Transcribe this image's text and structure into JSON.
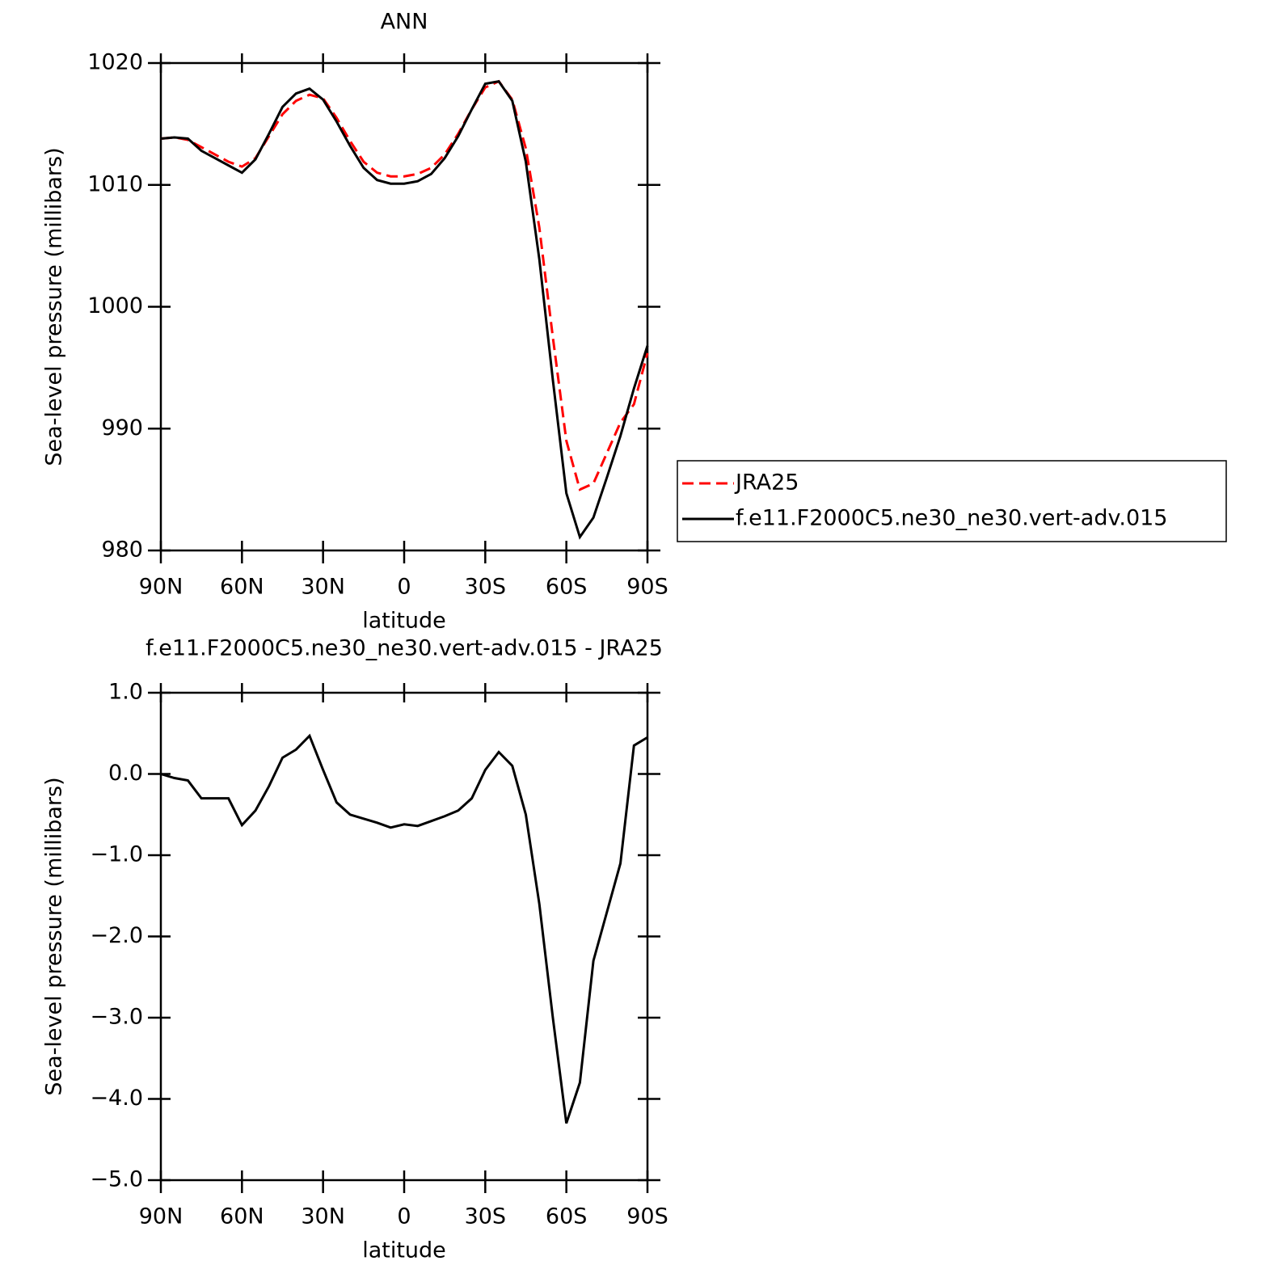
{
  "chart_data": [
    {
      "type": "line",
      "title": "ANN",
      "xlabel": "latitude",
      "ylabel": "Sea-level pressure (millibars)",
      "x": [
        90,
        85,
        80,
        75,
        70,
        65,
        60,
        55,
        50,
        45,
        40,
        35,
        30,
        25,
        20,
        15,
        10,
        5,
        0,
        -5,
        -10,
        -15,
        -20,
        -25,
        -30,
        -35,
        -40,
        -45,
        -50,
        -55,
        -60,
        -65,
        -70,
        -75,
        -80,
        -85,
        -90
      ],
      "series": [
        {
          "name": "JRA25",
          "color": "#ff0000",
          "dashed": true,
          "values": [
            1013.8,
            1013.9,
            1013.7,
            1013.1,
            1012.5,
            1011.9,
            1011.5,
            1012.2,
            1014.0,
            1015.8,
            1016.9,
            1017.4,
            1017.1,
            1015.5,
            1013.6,
            1011.9,
            1011.0,
            1010.7,
            1010.7,
            1010.9,
            1011.4,
            1012.5,
            1014.2,
            1016.2,
            1018.0,
            1018.5,
            1017.0,
            1013.0,
            1006.5,
            997.5,
            989.0,
            985.0,
            985.5,
            988.0,
            990.5,
            992.0,
            996.2
          ]
        },
        {
          "name": "f.e11.F2000C5.ne30_ne30.vert-adv.015",
          "color": "#000000",
          "dashed": false,
          "values": [
            1013.8,
            1013.9,
            1013.8,
            1012.8,
            1012.2,
            1011.6,
            1011.0,
            1012.1,
            1014.2,
            1016.4,
            1017.5,
            1017.9,
            1017.0,
            1015.2,
            1013.2,
            1011.4,
            1010.4,
            1010.1,
            1010.1,
            1010.3,
            1010.9,
            1012.2,
            1014.0,
            1016.2,
            1018.3,
            1018.5,
            1016.9,
            1011.9,
            1003.9,
            994.0,
            984.7,
            981.1,
            982.7,
            986.0,
            989.4,
            993.3,
            996.8
          ]
        }
      ],
      "xlim": [
        90,
        -90
      ],
      "xticks": [
        {
          "value": 90,
          "label": "90N"
        },
        {
          "value": 60,
          "label": "60N"
        },
        {
          "value": 30,
          "label": "30N"
        },
        0,
        {
          "value": -30,
          "label": "30S"
        },
        {
          "value": -60,
          "label": "60S"
        },
        {
          "value": -90,
          "label": "90S"
        }
      ],
      "ylim": [
        980,
        1020
      ],
      "yticks": [
        980,
        990,
        1000,
        1010,
        1020
      ],
      "legend": "right"
    },
    {
      "type": "line",
      "title": "f.e11.F2000C5.ne30_ne30.vert-adv.015 - JRA25",
      "xlabel": "latitude",
      "ylabel": "Sea-level pressure (millibars)",
      "x": [
        90,
        85,
        80,
        75,
        70,
        65,
        60,
        55,
        50,
        45,
        40,
        35,
        30,
        25,
        20,
        15,
        10,
        5,
        0,
        -5,
        -10,
        -15,
        -20,
        -25,
        -30,
        -35,
        -40,
        -45,
        -50,
        -55,
        -60,
        -65,
        -70,
        -75,
        -80,
        -85,
        -90
      ],
      "series": [
        {
          "color": "#000000",
          "dashed": false,
          "values": [
            0.0,
            -0.05,
            -0.08,
            -0.3,
            -0.3,
            -0.3,
            -0.63,
            -0.45,
            -0.15,
            0.2,
            0.3,
            0.47,
            0.05,
            -0.35,
            -0.5,
            -0.55,
            -0.6,
            -0.66,
            -0.62,
            -0.64,
            -0.58,
            -0.52,
            -0.45,
            -0.3,
            0.05,
            0.27,
            0.1,
            -0.5,
            -1.6,
            -3.0,
            -4.3,
            -3.8,
            -2.3,
            -1.7,
            -1.1,
            0.35,
            0.45
          ]
        }
      ],
      "xlim": [
        90,
        -90
      ],
      "xticks": [
        {
          "value": 90,
          "label": "90N"
        },
        {
          "value": 60,
          "label": "60N"
        },
        {
          "value": 30,
          "label": "30N"
        },
        0,
        {
          "value": -30,
          "label": "30S"
        },
        {
          "value": -60,
          "label": "60S"
        },
        {
          "value": -90,
          "label": "90S"
        }
      ],
      "ylim": [
        -5,
        1
      ],
      "yticks": [
        {
          "value": -5,
          "label": "−5.0"
        },
        {
          "value": -4,
          "label": "−4.0"
        },
        {
          "value": -3,
          "label": "−3.0"
        },
        {
          "value": -2,
          "label": "−2.0"
        },
        {
          "value": -1,
          "label": "−1.0"
        },
        {
          "value": 0,
          "label": "0.0"
        },
        {
          "value": 1,
          "label": "1.0"
        }
      ]
    }
  ]
}
